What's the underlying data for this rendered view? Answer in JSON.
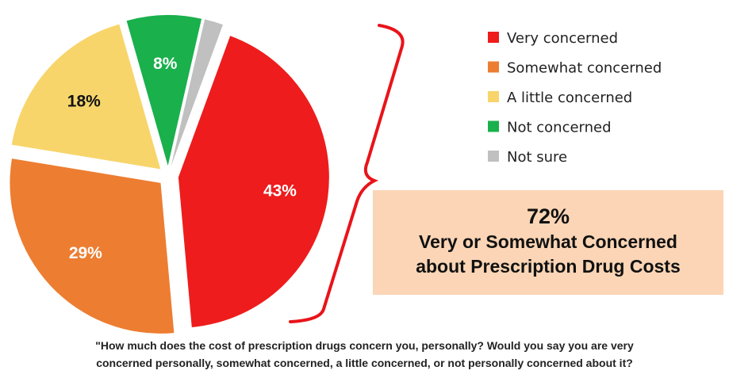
{
  "chart_data": {
    "type": "pie",
    "slices": [
      {
        "label": "Very concerned",
        "value": 43,
        "display": "43%",
        "color": "#ee1c1c",
        "label_color": "#ffffff"
      },
      {
        "label": "Somewhat concerned",
        "value": 29,
        "display": "29%",
        "color": "#ed7d31",
        "label_color": "#ffffff"
      },
      {
        "label": "A little concerned",
        "value": 18,
        "display": "18%",
        "color": "#f7d56a",
        "label_color": "#111111"
      },
      {
        "label": "Not concerned",
        "value": 8,
        "display": "8%",
        "color": "#1ab04c",
        "label_color": "#ffffff"
      },
      {
        "label": "Not sure",
        "value": 2,
        "display": "",
        "color": "#c0c0c0",
        "label_color": "#ffffff"
      }
    ],
    "legend_position": "top-right"
  },
  "callout": {
    "percent": "72%",
    "line1": "Very or Somewhat Concerned",
    "line2": "about Prescription Drug Costs",
    "bracket_color": "#e8141a"
  },
  "footer": {
    "line1": "\"How much does the cost of prescription drugs concern you, personally?  Would you say you are very",
    "line2": "concerned personally, somewhat concerned, a little concerned, or not personally concerned about it?"
  }
}
